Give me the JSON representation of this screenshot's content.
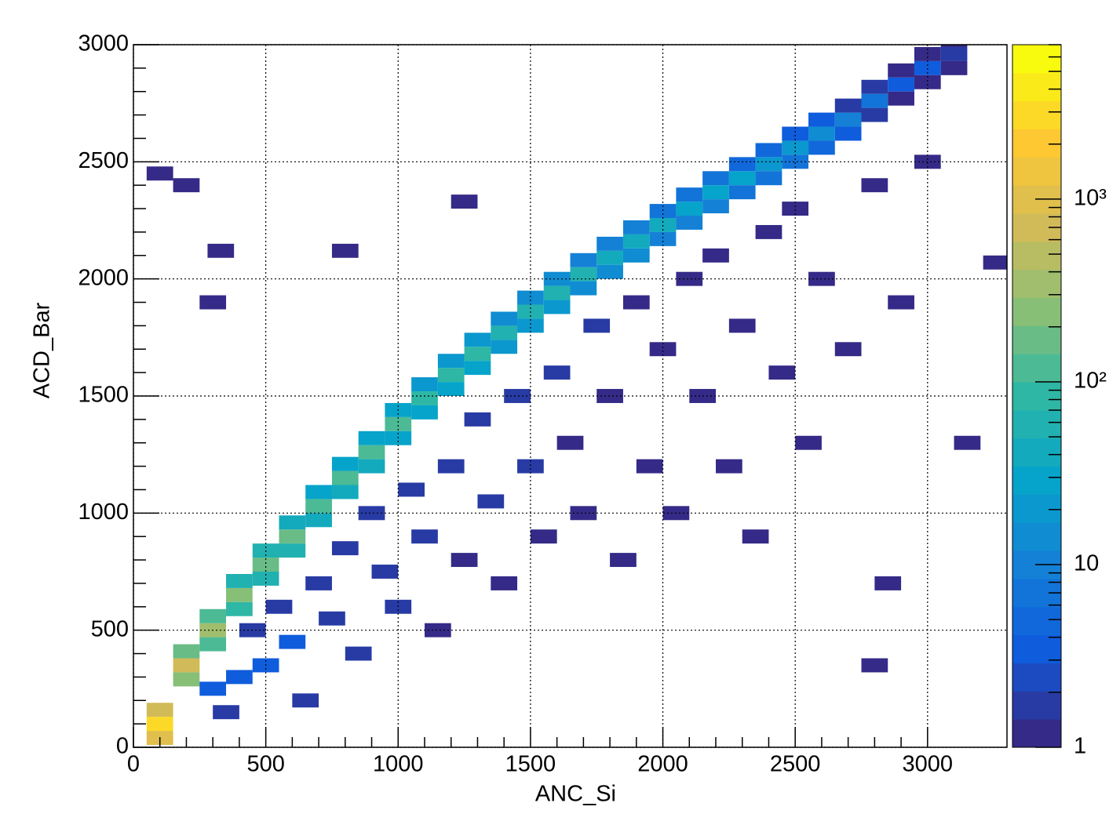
{
  "chart_data": {
    "type": "hist2d",
    "x_label": "ANC_Si",
    "y_label": "ACD_Bar",
    "xlim": [
      0,
      3300
    ],
    "ylim": [
      0,
      3000
    ],
    "xticks": [
      0,
      500,
      1000,
      1500,
      2000,
      2500,
      3000
    ],
    "yticks": [
      0,
      500,
      1000,
      1500,
      2000,
      2500,
      3000
    ],
    "grid": true,
    "zlim": [
      1,
      7000
    ],
    "zlog": true,
    "zticks": [
      1,
      10,
      {
        "value": 100,
        "label": "10²"
      },
      {
        "value": 1000,
        "label": "10³"
      }
    ],
    "x": [
      100,
      200,
      300,
      400,
      500,
      600,
      700,
      800,
      900,
      1000,
      1100,
      1200,
      1300,
      1400,
      1500,
      1600,
      1700,
      1800,
      1900,
      2000,
      2100,
      2200,
      2300,
      2400,
      2500,
      2600,
      2700,
      2800,
      2900,
      3000,
      3100,
      100,
      200,
      300,
      400,
      500,
      600,
      700,
      800,
      900,
      1000,
      1100,
      1200,
      1300,
      1400,
      1500,
      1600,
      1700,
      1800,
      1900,
      2000,
      2100,
      2200,
      2300,
      2400,
      2500,
      2600,
      2700,
      2800,
      2900,
      3000,
      3100,
      100,
      200,
      300,
      400,
      500,
      600,
      700,
      800,
      900,
      1000,
      1100,
      1200,
      1300,
      1400,
      1500,
      1600,
      1700,
      1800,
      1900,
      2000,
      2100,
      2200,
      2300,
      2400,
      2500,
      2600,
      2700,
      2800,
      2900,
      3000,
      3100,
      300,
      350,
      400,
      450,
      500,
      550,
      600,
      650,
      700,
      750,
      800,
      850,
      900,
      950,
      1000,
      1050,
      1100,
      1150,
      1200,
      1250,
      1300,
      1350,
      1400,
      1450,
      1500,
      1550,
      1600,
      1650,
      1700,
      1750,
      1800,
      1850,
      1900,
      1950,
      2000,
      2050,
      2100,
      2150,
      2200,
      2250,
      2300,
      2350,
      2400,
      2450,
      2500,
      2550,
      2600,
      2700,
      2800,
      2900,
      3000,
      3150,
      3260,
      1250,
      330,
      300,
      200,
      100,
      800,
      2800,
      2850
    ],
    "y": [
      100,
      350,
      500,
      650,
      780,
      900,
      1030,
      1150,
      1260,
      1380,
      1490,
      1590,
      1680,
      1770,
      1860,
      1940,
      2020,
      2090,
      2160,
      2230,
      2300,
      2370,
      2430,
      2490,
      2560,
      2620,
      2680,
      2760,
      2830,
      2900,
      2960,
      160,
      410,
      560,
      710,
      840,
      960,
      1090,
      1210,
      1320,
      1440,
      1550,
      1650,
      1740,
      1830,
      1920,
      2000,
      2080,
      2150,
      2220,
      2290,
      2360,
      2430,
      2490,
      2550,
      2620,
      2680,
      2740,
      2820,
      2890,
      2960,
      3020,
      40,
      290,
      440,
      590,
      720,
      840,
      970,
      1090,
      1200,
      1320,
      1430,
      1530,
      1620,
      1710,
      1800,
      1880,
      1960,
      2030,
      2100,
      2170,
      2240,
      2310,
      2370,
      2430,
      2500,
      2560,
      2620,
      2700,
      2770,
      2840,
      2900,
      250,
      150,
      300,
      500,
      350,
      600,
      450,
      200,
      700,
      550,
      850,
      400,
      1000,
      750,
      600,
      1100,
      900,
      500,
      1200,
      800,
      1400,
      1050,
      700,
      1500,
      1200,
      900,
      1600,
      1300,
      1000,
      1800,
      1500,
      800,
      1900,
      1200,
      1700,
      1000,
      2000,
      1500,
      2100,
      1200,
      1800,
      900,
      2200,
      1600,
      2300,
      1300,
      2000,
      1700,
      2400,
      1900,
      2500,
      1300,
      2070,
      2330,
      2120,
      1900,
      2400,
      2450,
      2120,
      350,
      700
    ],
    "counts": [
      3000,
      800,
      400,
      250,
      200,
      150,
      130,
      120,
      110,
      100,
      90,
      80,
      80,
      70,
      60,
      55,
      50,
      45,
      40,
      35,
      30,
      28,
      25,
      22,
      18,
      15,
      10,
      7,
      4,
      3,
      2,
      700,
      200,
      100,
      60,
      50,
      40,
      30,
      30,
      25,
      25,
      20,
      20,
      18,
      15,
      14,
      12,
      11,
      10,
      9,
      8,
      7,
      6,
      5,
      5,
      4,
      3,
      2,
      2,
      1,
      1,
      1,
      900,
      250,
      130,
      80,
      65,
      50,
      40,
      40,
      35,
      30,
      28,
      25,
      25,
      22,
      20,
      18,
      16,
      14,
      12,
      11,
      10,
      9,
      8,
      7,
      6,
      5,
      3,
      2,
      1,
      1,
      1,
      3,
      2,
      3,
      2,
      3,
      2,
      3,
      2,
      2,
      2,
      2,
      2,
      2,
      2,
      2,
      2,
      2,
      1,
      2,
      1,
      2,
      2,
      1,
      2,
      2,
      1,
      2,
      1,
      1,
      2,
      1,
      1,
      1,
      1,
      1,
      1,
      1,
      1,
      1,
      1,
      1,
      1,
      1,
      1,
      1,
      1,
      1,
      1,
      1,
      1,
      1,
      1,
      1,
      1,
      1,
      1,
      1,
      1,
      1,
      1,
      1
    ]
  }
}
